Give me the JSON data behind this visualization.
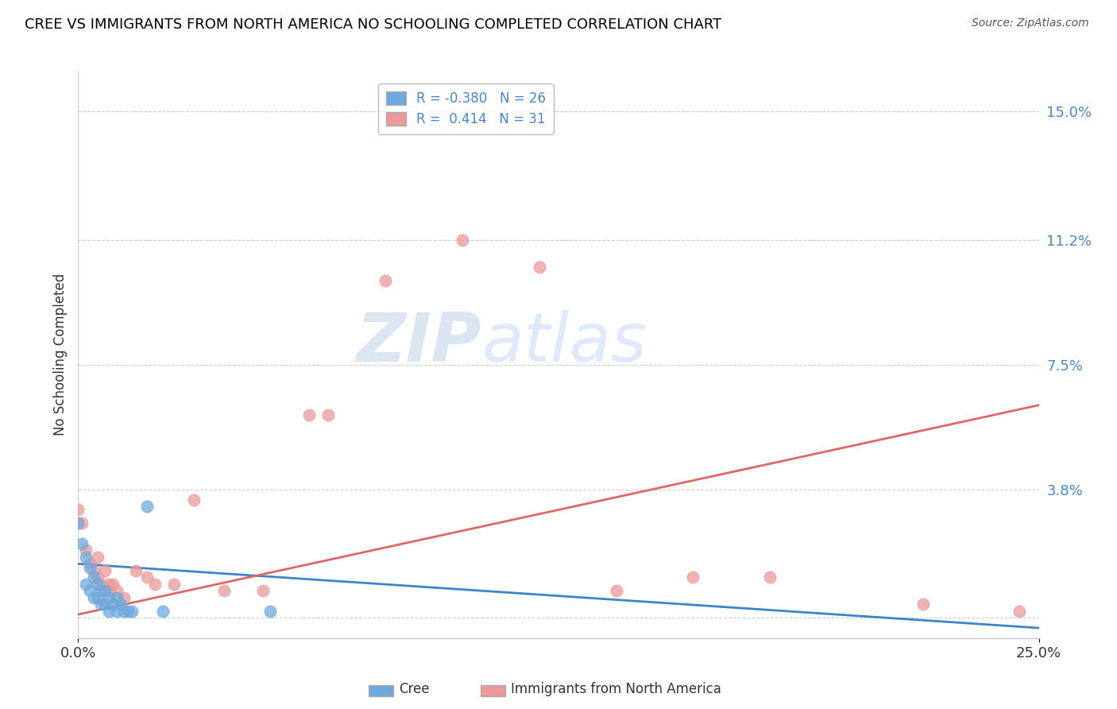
{
  "title": "CREE VS IMMIGRANTS FROM NORTH AMERICA NO SCHOOLING COMPLETED CORRELATION CHART",
  "source": "Source: ZipAtlas.com",
  "ylabel_label": "No Schooling Completed",
  "right_yticks": [
    0.0,
    0.038,
    0.075,
    0.112,
    0.15
  ],
  "right_ytick_labels": [
    "",
    "3.8%",
    "7.5%",
    "11.2%",
    "15.0%"
  ],
  "xlim": [
    0.0,
    0.25
  ],
  "ylim": [
    -0.006,
    0.162
  ],
  "cree_color": "#6fa8dc",
  "immigrants_color": "#ea9999",
  "cree_line_color": "#3d85c8",
  "immigrants_line_color": "#e06666",
  "cree_scatter_x": [
    0.0,
    0.001,
    0.002,
    0.002,
    0.003,
    0.003,
    0.004,
    0.004,
    0.005,
    0.005,
    0.006,
    0.006,
    0.007,
    0.007,
    0.008,
    0.008,
    0.009,
    0.01,
    0.01,
    0.011,
    0.012,
    0.013,
    0.014,
    0.018,
    0.022,
    0.05
  ],
  "cree_scatter_y": [
    0.028,
    0.022,
    0.018,
    0.01,
    0.015,
    0.008,
    0.012,
    0.006,
    0.01,
    0.006,
    0.008,
    0.004,
    0.008,
    0.004,
    0.006,
    0.002,
    0.004,
    0.006,
    0.002,
    0.004,
    0.002,
    0.002,
    0.002,
    0.033,
    0.002,
    0.002
  ],
  "immigrants_scatter_x": [
    0.0,
    0.001,
    0.002,
    0.003,
    0.004,
    0.005,
    0.005,
    0.006,
    0.007,
    0.008,
    0.008,
    0.009,
    0.01,
    0.012,
    0.015,
    0.018,
    0.02,
    0.025,
    0.03,
    0.038,
    0.048,
    0.06,
    0.065,
    0.08,
    0.1,
    0.12,
    0.14,
    0.16,
    0.18,
    0.22,
    0.245
  ],
  "immigrants_scatter_y": [
    0.032,
    0.028,
    0.02,
    0.016,
    0.014,
    0.018,
    0.012,
    0.01,
    0.014,
    0.01,
    0.008,
    0.01,
    0.008,
    0.006,
    0.014,
    0.012,
    0.01,
    0.01,
    0.035,
    0.008,
    0.008,
    0.06,
    0.06,
    0.1,
    0.112,
    0.104,
    0.008,
    0.012,
    0.012,
    0.004,
    0.002
  ],
  "cree_line_y_start": 0.016,
  "cree_line_y_end": -0.003,
  "immigrants_line_y_start": 0.001,
  "immigrants_line_y_end": 0.063,
  "watermark_zip": "ZIP",
  "watermark_atlas": "atlas"
}
